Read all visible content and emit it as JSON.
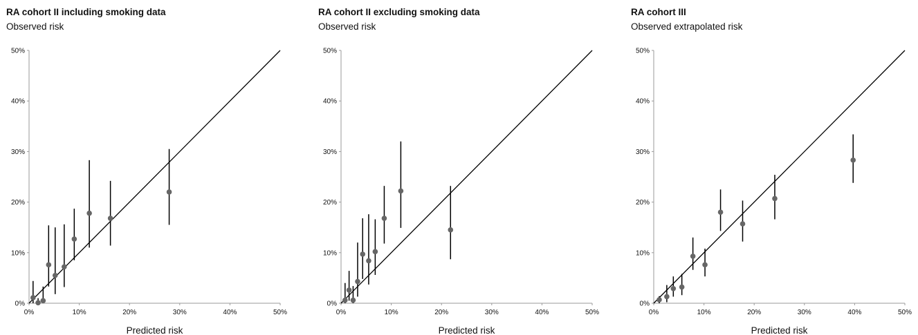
{
  "chart_data": [
    {
      "type": "scatter",
      "title": "RA cohort II including smoking data",
      "ylabel": "Observed risk",
      "xlabel": "Predicted risk",
      "xlim": [
        0,
        50
      ],
      "ylim": [
        0,
        50
      ],
      "xticks": [
        "0%",
        "10%",
        "20%",
        "30%",
        "40%",
        "50%"
      ],
      "yticks": [
        "0%",
        "10%",
        "20%",
        "30%",
        "40%",
        "50%"
      ],
      "reference_line": "identity",
      "points": [
        {
          "x": 0.8,
          "y": 1.1,
          "lo": 0,
          "hi": 4.4
        },
        {
          "x": 1.8,
          "y": 0.1,
          "lo": 0,
          "hi": 1.0
        },
        {
          "x": 2.8,
          "y": 0.5,
          "lo": 0,
          "hi": 3.3
        },
        {
          "x": 3.9,
          "y": 7.6,
          "lo": 3.3,
          "hi": 15.4
        },
        {
          "x": 5.2,
          "y": 5.5,
          "lo": 1.8,
          "hi": 15.0
        },
        {
          "x": 7.0,
          "y": 7.2,
          "lo": 3.2,
          "hi": 15.6
        },
        {
          "x": 9.0,
          "y": 12.7,
          "lo": 8.5,
          "hi": 18.7
        },
        {
          "x": 12.0,
          "y": 17.8,
          "lo": 11.0,
          "hi": 28.3
        },
        {
          "x": 16.2,
          "y": 16.8,
          "lo": 11.4,
          "hi": 24.2
        },
        {
          "x": 27.9,
          "y": 22.0,
          "lo": 15.5,
          "hi": 30.5
        }
      ]
    },
    {
      "type": "scatter",
      "title": "RA cohort II excluding smoking data",
      "ylabel": "Observed risk",
      "xlabel": "Predicted risk",
      "xlim": [
        0,
        50
      ],
      "ylim": [
        0,
        50
      ],
      "xticks": [
        "0%",
        "10%",
        "20%",
        "30%",
        "40%",
        "50%"
      ],
      "yticks": [
        "0%",
        "10%",
        "20%",
        "30%",
        "40%",
        "50%"
      ],
      "reference_line": "identity",
      "points": [
        {
          "x": 0.8,
          "y": 0.6,
          "lo": 0,
          "hi": 4.0
        },
        {
          "x": 1.6,
          "y": 2.6,
          "lo": 0.5,
          "hi": 6.4
        },
        {
          "x": 2.4,
          "y": 0.6,
          "lo": 0,
          "hi": 3.4
        },
        {
          "x": 3.3,
          "y": 4.3,
          "lo": 1.3,
          "hi": 12.0
        },
        {
          "x": 4.3,
          "y": 9.7,
          "lo": 4.8,
          "hi": 16.8
        },
        {
          "x": 5.5,
          "y": 8.4,
          "lo": 3.7,
          "hi": 17.6
        },
        {
          "x": 6.8,
          "y": 10.2,
          "lo": 5.6,
          "hi": 16.6
        },
        {
          "x": 8.6,
          "y": 16.8,
          "lo": 11.8,
          "hi": 23.2
        },
        {
          "x": 11.9,
          "y": 22.2,
          "lo": 14.9,
          "hi": 32.0
        },
        {
          "x": 21.8,
          "y": 14.5,
          "lo": 8.7,
          "hi": 23.2
        }
      ]
    },
    {
      "type": "scatter",
      "title": "RA cohort III",
      "ylabel": "Observed extrapolated risk",
      "xlabel": "Predicted risk",
      "xlim": [
        0,
        50
      ],
      "ylim": [
        0,
        50
      ],
      "xticks": [
        "0%",
        "10%",
        "20%",
        "30%",
        "40%",
        "50%"
      ],
      "yticks": [
        "0%",
        "10%",
        "20%",
        "30%",
        "40%",
        "50%"
      ],
      "reference_line": "identity",
      "points": [
        {
          "x": 1.1,
          "y": 0.7,
          "lo": 0,
          "hi": 1.4
        },
        {
          "x": 2.6,
          "y": 1.3,
          "lo": 0.2,
          "hi": 3.6
        },
        {
          "x": 3.9,
          "y": 2.9,
          "lo": 1.3,
          "hi": 5.3
        },
        {
          "x": 5.6,
          "y": 3.2,
          "lo": 1.6,
          "hi": 5.8
        },
        {
          "x": 7.8,
          "y": 9.3,
          "lo": 6.6,
          "hi": 13.0
        },
        {
          "x": 10.2,
          "y": 7.6,
          "lo": 5.3,
          "hi": 10.8
        },
        {
          "x": 13.3,
          "y": 18.0,
          "lo": 14.3,
          "hi": 22.5
        },
        {
          "x": 17.7,
          "y": 15.7,
          "lo": 12.2,
          "hi": 20.3
        },
        {
          "x": 24.1,
          "y": 20.7,
          "lo": 16.6,
          "hi": 25.4
        },
        {
          "x": 39.7,
          "y": 28.3,
          "lo": 23.8,
          "hi": 33.4
        }
      ]
    }
  ]
}
